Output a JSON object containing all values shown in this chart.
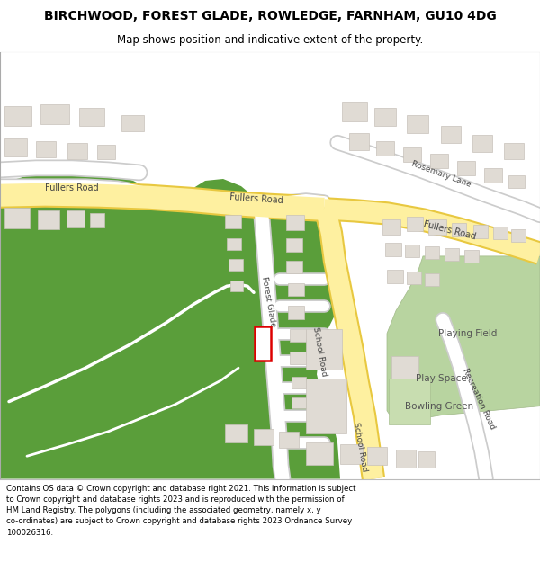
{
  "title_line1": "BIRCHWOOD, FOREST GLADE, ROWLEDGE, FARNHAM, GU10 4DG",
  "title_line2": "Map shows position and indicative extent of the property.",
  "footer_text": "Contains OS data © Crown copyright and database right 2021. This information is subject\nto Crown copyright and database rights 2023 and is reproduced with the permission of\nHM Land Registry. The polygons (including the associated geometry, namely x, y\nco-ordinates) are subject to Crown copyright and database rights 2023 Ordnance Survey\n100026316.",
  "map_bg": "#f5f3f0",
  "road_white_color": "#ffffff",
  "road_white_fill": "#fef9f0",
  "road_outline": "#cccccc",
  "yellow_road_fill": "#fef0a0",
  "yellow_road_outline": "#e8c840",
  "green_woodland": "#5a9e3a",
  "green_sports": "#b8d4a0",
  "green_sports2": "#c8ddb0",
  "building_color": "#e0dbd4",
  "building_outline": "#c8c2ba",
  "plot_outline_color": "#dd0000",
  "footer_bg": "#ffffff",
  "title_bg": "#ffffff",
  "label_color": "#444444",
  "white_path": "#ffffff",
  "title_fontsize": 10,
  "subtitle_fontsize": 8.5,
  "footer_fontsize": 6.2
}
